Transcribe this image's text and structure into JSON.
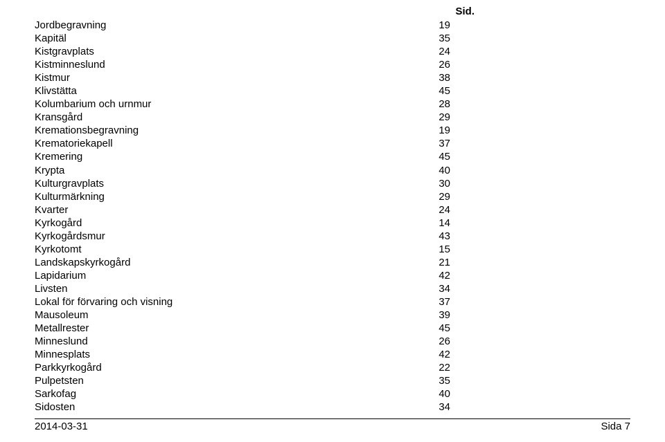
{
  "header": {
    "label": "Sid."
  },
  "entries": [
    {
      "term": "Jordbegravning",
      "page": "19"
    },
    {
      "term": "Kapitäl",
      "page": "35"
    },
    {
      "term": "Kistgravplats",
      "page": "24"
    },
    {
      "term": "Kistminneslund",
      "page": "26"
    },
    {
      "term": "Kistmur",
      "page": "38"
    },
    {
      "term": "Klivstätta",
      "page": "45"
    },
    {
      "term": "Kolumbarium och urnmur",
      "page": "28"
    },
    {
      "term": "Kransgård",
      "page": "29"
    },
    {
      "term": "Kremationsbegravning",
      "page": "19"
    },
    {
      "term": "Krematoriekapell",
      "page": "37"
    },
    {
      "term": "Kremering",
      "page": "45"
    },
    {
      "term": "Krypta",
      "page": "40"
    },
    {
      "term": "Kulturgravplats",
      "page": "30"
    },
    {
      "term": "Kulturmärkning",
      "page": "29"
    },
    {
      "term": "Kvarter",
      "page": "24"
    },
    {
      "term": "Kyrkogård",
      "page": "14"
    },
    {
      "term": "Kyrkogårdsmur",
      "page": "43"
    },
    {
      "term": "Kyrkotomt",
      "page": "15"
    },
    {
      "term": "Landskapskyrkogård",
      "page": "21"
    },
    {
      "term": "Lapidarium",
      "page": "42"
    },
    {
      "term": "Livsten",
      "page": "34"
    },
    {
      "term": "Lokal för förvaring och visning",
      "page": "37"
    },
    {
      "term": "Mausoleum",
      "page": "39"
    },
    {
      "term": "Metallrester",
      "page": "45"
    },
    {
      "term": "Minneslund",
      "page": "26"
    },
    {
      "term": "Minnesplats",
      "page": "42"
    },
    {
      "term": "Parkkyrkogård",
      "page": "22"
    },
    {
      "term": "Pulpetsten",
      "page": "35"
    },
    {
      "term": "Sarkofag",
      "page": "40"
    },
    {
      "term": "Sidosten",
      "page": "34"
    }
  ],
  "footer": {
    "date": "2014-03-31",
    "page_label": "Sida 7"
  },
  "style": {
    "font_family": "Arial",
    "font_size_pt": 11,
    "text_color": "#000000",
    "background_color": "#ffffff",
    "rule_color": "#000000"
  }
}
